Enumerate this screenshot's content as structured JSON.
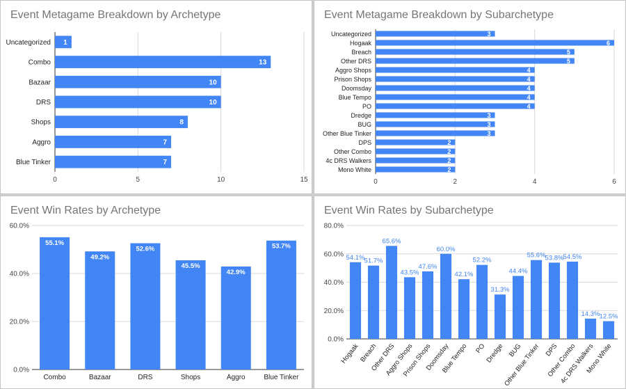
{
  "colors": {
    "bar": "#4285f4",
    "axis": "#333333",
    "grid": "#d9d9d9",
    "label_on_bar": "#ffffff",
    "label_outside": "#4285f4",
    "title": "#757575"
  },
  "chart_data": [
    {
      "type": "bar",
      "orientation": "horizontal",
      "title": "Event Metagame Breakdown by Archetype",
      "categories": [
        "Uncategorized",
        "Combo",
        "Bazaar",
        "DRS",
        "Shops",
        "Aggro",
        "Blue Tinker"
      ],
      "values": [
        1,
        13,
        10,
        10,
        8,
        7,
        7
      ],
      "xlim": [
        0,
        15
      ],
      "ticks": [
        "0",
        "5",
        "10",
        "15"
      ],
      "grid": true,
      "data_labels": true
    },
    {
      "type": "bar",
      "orientation": "horizontal",
      "title": "Event Metagame Breakdown by Subarchetype",
      "categories": [
        "Uncategorized",
        "Hogaak",
        "Breach",
        "Other DRS",
        "Aggro Shops",
        "Prison Shops",
        "Doomsday",
        "Blue Tempo",
        "PO",
        "Dredge",
        "BUG",
        "Other Blue Tinker",
        "DPS",
        "Other Combo",
        "4c DRS Walkers",
        "Mono White"
      ],
      "values": [
        3,
        6,
        5,
        5,
        4,
        4,
        4,
        4,
        4,
        3,
        3,
        3,
        2,
        2,
        2,
        2
      ],
      "xlim": [
        0,
        6
      ],
      "ticks": [
        "0",
        "2",
        "4",
        "6"
      ],
      "grid": true,
      "data_labels": true
    },
    {
      "type": "bar",
      "orientation": "vertical",
      "title": "Event Win Rates by Archetype",
      "categories": [
        "Combo",
        "Bazaar",
        "DRS",
        "Shops",
        "Aggro",
        "Blue Tinker"
      ],
      "values": [
        55.1,
        49.2,
        52.6,
        45.5,
        42.9,
        53.7
      ],
      "value_labels": [
        "55.1%",
        "49.2%",
        "52.6%",
        "45.5%",
        "42.9%",
        "53.7%"
      ],
      "ylim": [
        0,
        60
      ],
      "ticks": [
        "0.0%",
        "20.0%",
        "40.0%",
        "60.0%"
      ],
      "grid": true,
      "data_labels": true
    },
    {
      "type": "bar",
      "orientation": "vertical",
      "title": "Event Win Rates by Subarchetype",
      "categories": [
        "Hogaak",
        "Breach",
        "Other DRS",
        "Aggro Shops",
        "Prison Shops",
        "Doomsday",
        "Blue Tempo",
        "PO",
        "Dredge",
        "BUG",
        "Other Blue Tinker",
        "DPS",
        "Other Combo",
        "4c DRS Walkers",
        "Mono White"
      ],
      "values": [
        54.1,
        51.7,
        65.6,
        43.5,
        47.6,
        60.0,
        42.1,
        52.2,
        31.3,
        44.4,
        55.6,
        53.8,
        54.5,
        14.3,
        12.5
      ],
      "value_labels": [
        "54.1%",
        "51.7%",
        "65.6%",
        "43.5%",
        "47.6%",
        "60.0%",
        "42.1%",
        "52.2%",
        "31.3%",
        "44.4%",
        "55.6%",
        "53.8%",
        "54.5%",
        "14.3%",
        "12.5%"
      ],
      "ylim": [
        0,
        80
      ],
      "ticks": [
        "0.0%",
        "20.0%",
        "40.0%",
        "60.0%",
        "80.0%"
      ],
      "grid": true,
      "data_labels": true,
      "rotated_category_labels": true
    }
  ]
}
